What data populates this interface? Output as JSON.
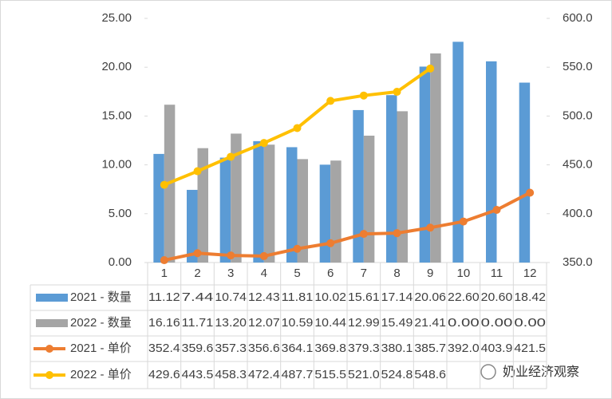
{
  "chart_data": {
    "type": "bar-line",
    "categories": [
      "1",
      "2",
      "3",
      "4",
      "5",
      "6",
      "7",
      "8",
      "9",
      "10",
      "11",
      "12"
    ],
    "series": [
      {
        "name": "2021 - 数量",
        "type": "bar",
        "axis": "y",
        "color": "#5b9bd5",
        "values": [
          11.12,
          7.44,
          10.74,
          12.43,
          11.81,
          10.02,
          15.61,
          17.14,
          20.06,
          22.6,
          20.6,
          18.42
        ],
        "value_labels": [
          "11.12",
          "7.44",
          "10.74",
          "12.43",
          "11.81",
          "10.02",
          "15.61",
          "17.14",
          "20.06",
          "22.60",
          "20.60",
          "18.42"
        ]
      },
      {
        "name": "2022 - 数量",
        "type": "bar",
        "axis": "y",
        "color": "#a5a5a5",
        "values": [
          16.16,
          11.71,
          13.2,
          12.07,
          10.59,
          10.44,
          12.99,
          15.49,
          21.41,
          0,
          0,
          0
        ],
        "value_labels": [
          "16.16",
          "11.71",
          "13.20",
          "12.07",
          "10.59",
          "10.44",
          "12.99",
          "15.49",
          "21.41",
          "0.00",
          "0.00",
          "0.00"
        ]
      },
      {
        "name": "2021 - 单价",
        "type": "line",
        "axis": "y2",
        "color": "#ed7d31",
        "values": [
          352.4,
          359.6,
          357.3,
          356.6,
          364.1,
          369.8,
          379.3,
          380.1,
          385.7,
          392,
          403.9,
          421.5
        ],
        "value_labels": [
          "352.4",
          "359.6",
          "357.3",
          "356.6",
          "364.1",
          "369.8",
          "379.3",
          "380.1",
          "385.7",
          "392.0",
          "403.9",
          "421.5"
        ]
      },
      {
        "name": "2022 - 单价",
        "type": "line",
        "axis": "y2",
        "color": "#ffc000",
        "values": [
          429.6,
          443.5,
          458.3,
          472.4,
          487.7,
          515.5,
          521,
          524.8,
          548.6,
          null,
          null,
          null
        ],
        "value_labels": [
          "429.6",
          "443.5",
          "458.3",
          "472.4",
          "487.7",
          "515.5",
          "521.0",
          "524.8",
          "548.6",
          null,
          null,
          null
        ]
      }
    ],
    "ylim": [
      0,
      25
    ],
    "yticks": [
      {
        "value": 0,
        "label": "0.00"
      },
      {
        "value": 5,
        "label": "5.00"
      },
      {
        "value": 10,
        "label": "10.00"
      },
      {
        "value": 15,
        "label": "15.00"
      },
      {
        "value": 20,
        "label": "20.00"
      },
      {
        "value": 25,
        "label": "25.00"
      }
    ],
    "y2lim": [
      350,
      600
    ],
    "y2ticks": [
      {
        "value": 350,
        "label": "350.0"
      },
      {
        "value": 400,
        "label": "400.0"
      },
      {
        "value": 450,
        "label": "450.0"
      },
      {
        "value": 500,
        "label": "500.0"
      },
      {
        "value": 550,
        "label": "550.0"
      },
      {
        "value": 600,
        "label": "600.0"
      }
    ],
    "watermark": "奶业经济观察"
  }
}
